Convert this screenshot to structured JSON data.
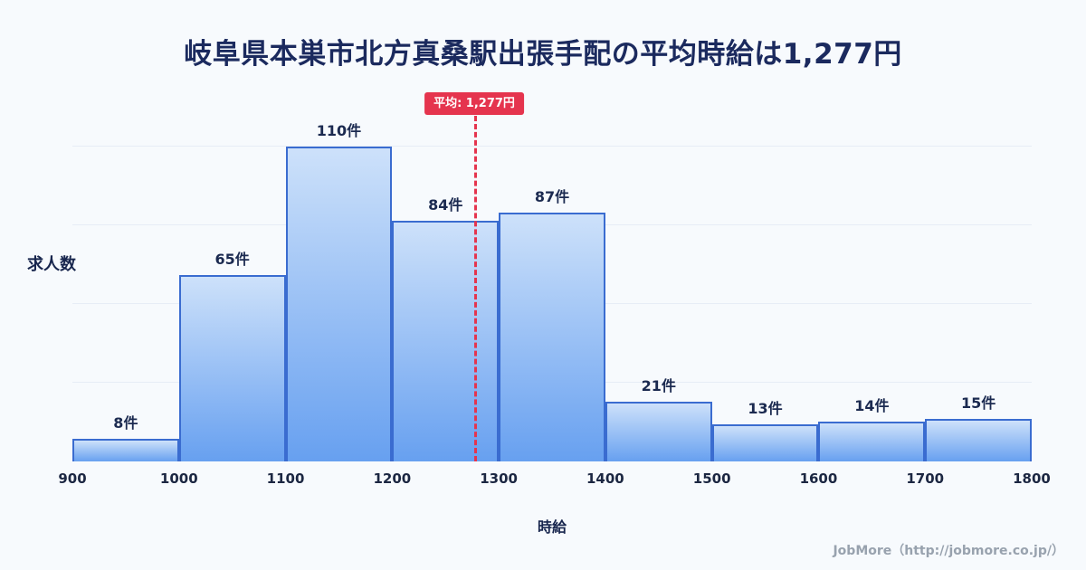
{
  "page": {
    "background": "#f7fafd",
    "footer": "JobMore（http://jobmore.co.jp/）"
  },
  "chart_data": {
    "type": "bar",
    "chart_kind": "histogram",
    "title": "岐阜県本巣市北方真桑駅出張手配の平均時給は1,277円",
    "xlabel": "時給",
    "ylabel": "求人数",
    "categories": [
      "900-1000",
      "1000-1100",
      "1100-1200",
      "1200-1300",
      "1300-1400",
      "1400-1500",
      "1500-1600",
      "1600-1700",
      "1700-1800"
    ],
    "values": [
      8,
      65,
      110,
      84,
      87,
      21,
      13,
      14,
      15
    ],
    "value_suffix": "件",
    "x_ticks": [
      "900",
      "1000",
      "1100",
      "1200",
      "1300",
      "1400",
      "1500",
      "1600",
      "1700",
      "1800"
    ],
    "xlim": [
      900,
      1800
    ],
    "ylim": [
      0,
      126
    ],
    "grid": true,
    "legend": "none",
    "average_line": {
      "value": 1277,
      "label": "平均: 1,277円"
    },
    "colors": {
      "bar_gradient_top": "#cde1fa",
      "bar_gradient_bottom": "#67a0f0",
      "bar_border": "#3a6cd0",
      "average_line": "#e5344e",
      "title_text": "#1b2a5e",
      "axis_text": "#1c2742",
      "grid_line": "#e7edf6",
      "footer_text": "#98a2ae"
    }
  }
}
